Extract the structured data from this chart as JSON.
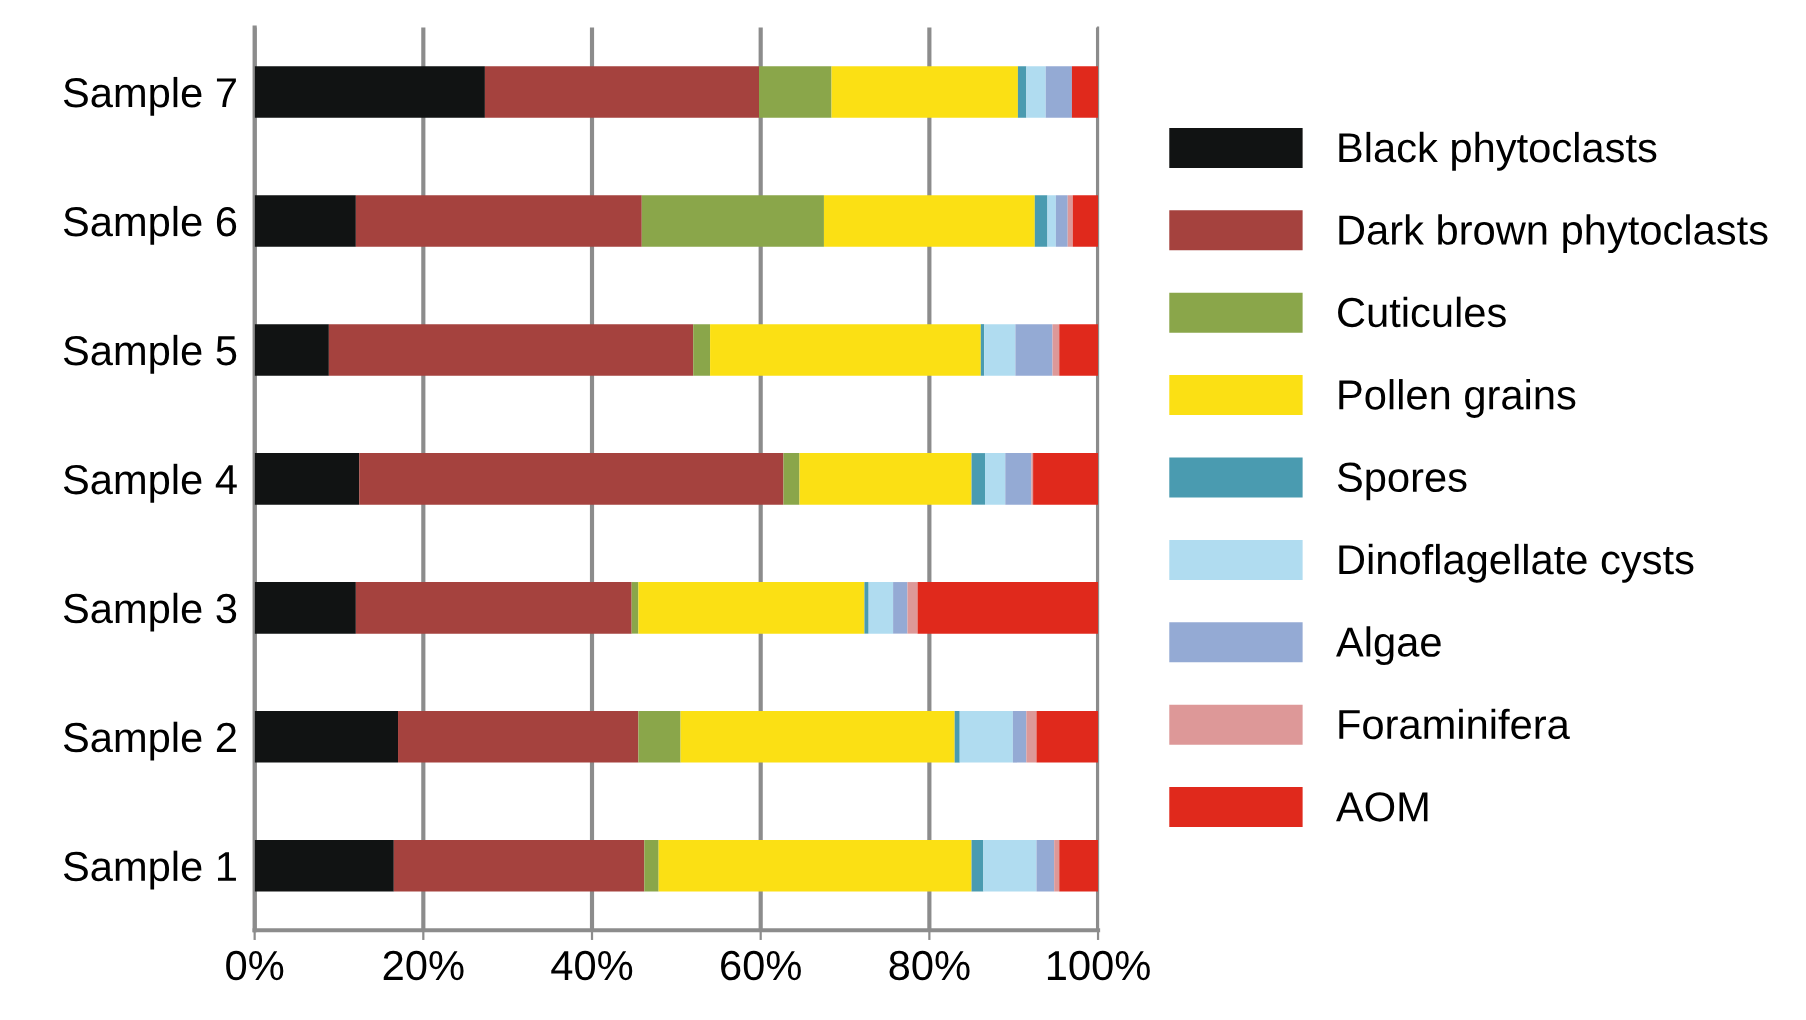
{
  "chart_data": {
    "type": "bar",
    "orientation": "horizontal",
    "stacked": true,
    "categories": [
      "Sample 7",
      "Sample 6",
      "Sample 5",
      "Sample 4",
      "Sample 3",
      "Sample 2",
      "Sample 1"
    ],
    "series": [
      {
        "name": "Black phytoclasts",
        "color": "#111313",
        "values": [
          27.3,
          12.0,
          8.8,
          12.4,
          12.0,
          17.0,
          16.5
        ]
      },
      {
        "name": "Dark brown phytoclasts",
        "color": "#a5423e",
        "values": [
          32.5,
          33.9,
          43.2,
          50.3,
          32.7,
          28.5,
          29.7
        ]
      },
      {
        "name": "Cuticules",
        "color": "#8aa64a",
        "values": [
          8.6,
          21.6,
          2.0,
          1.9,
          0.8,
          5.0,
          1.7
        ]
      },
      {
        "name": "Pollen grains",
        "color": "#fbe014",
        "values": [
          22.1,
          25.0,
          32.1,
          20.4,
          26.8,
          32.5,
          37.1
        ]
      },
      {
        "name": "Spores",
        "color": "#4a9bb0",
        "values": [
          1.0,
          1.5,
          0.4,
          1.6,
          0.5,
          0.6,
          1.4
        ]
      },
      {
        "name": "Dinoflagellate cysts",
        "color": "#b0dcf0",
        "values": [
          2.3,
          1.0,
          3.7,
          2.4,
          2.9,
          6.3,
          6.3
        ]
      },
      {
        "name": "Algae",
        "color": "#94aad4",
        "values": [
          3.1,
          1.4,
          4.4,
          3.1,
          1.7,
          1.6,
          2.1
        ]
      },
      {
        "name": "Foraminifera",
        "color": "#dd9898",
        "values": [
          0,
          0.6,
          0.8,
          0.2,
          1.2,
          1.2,
          0.6
        ]
      },
      {
        "name": "AOM",
        "color": "#e0291c",
        "values": [
          3.1,
          3.0,
          4.6,
          7.7,
          21.4,
          7.3,
          4.6
        ]
      }
    ],
    "xlim": [
      0,
      100
    ],
    "xticks": [
      {
        "value": 0,
        "label": "0%"
      },
      {
        "value": 20,
        "label": "20%"
      },
      {
        "value": 40,
        "label": "40%"
      },
      {
        "value": 60,
        "label": "60%"
      },
      {
        "value": 80,
        "label": "80%"
      },
      {
        "value": 100,
        "label": "100%"
      }
    ],
    "grid": "x",
    "legend": "right"
  }
}
